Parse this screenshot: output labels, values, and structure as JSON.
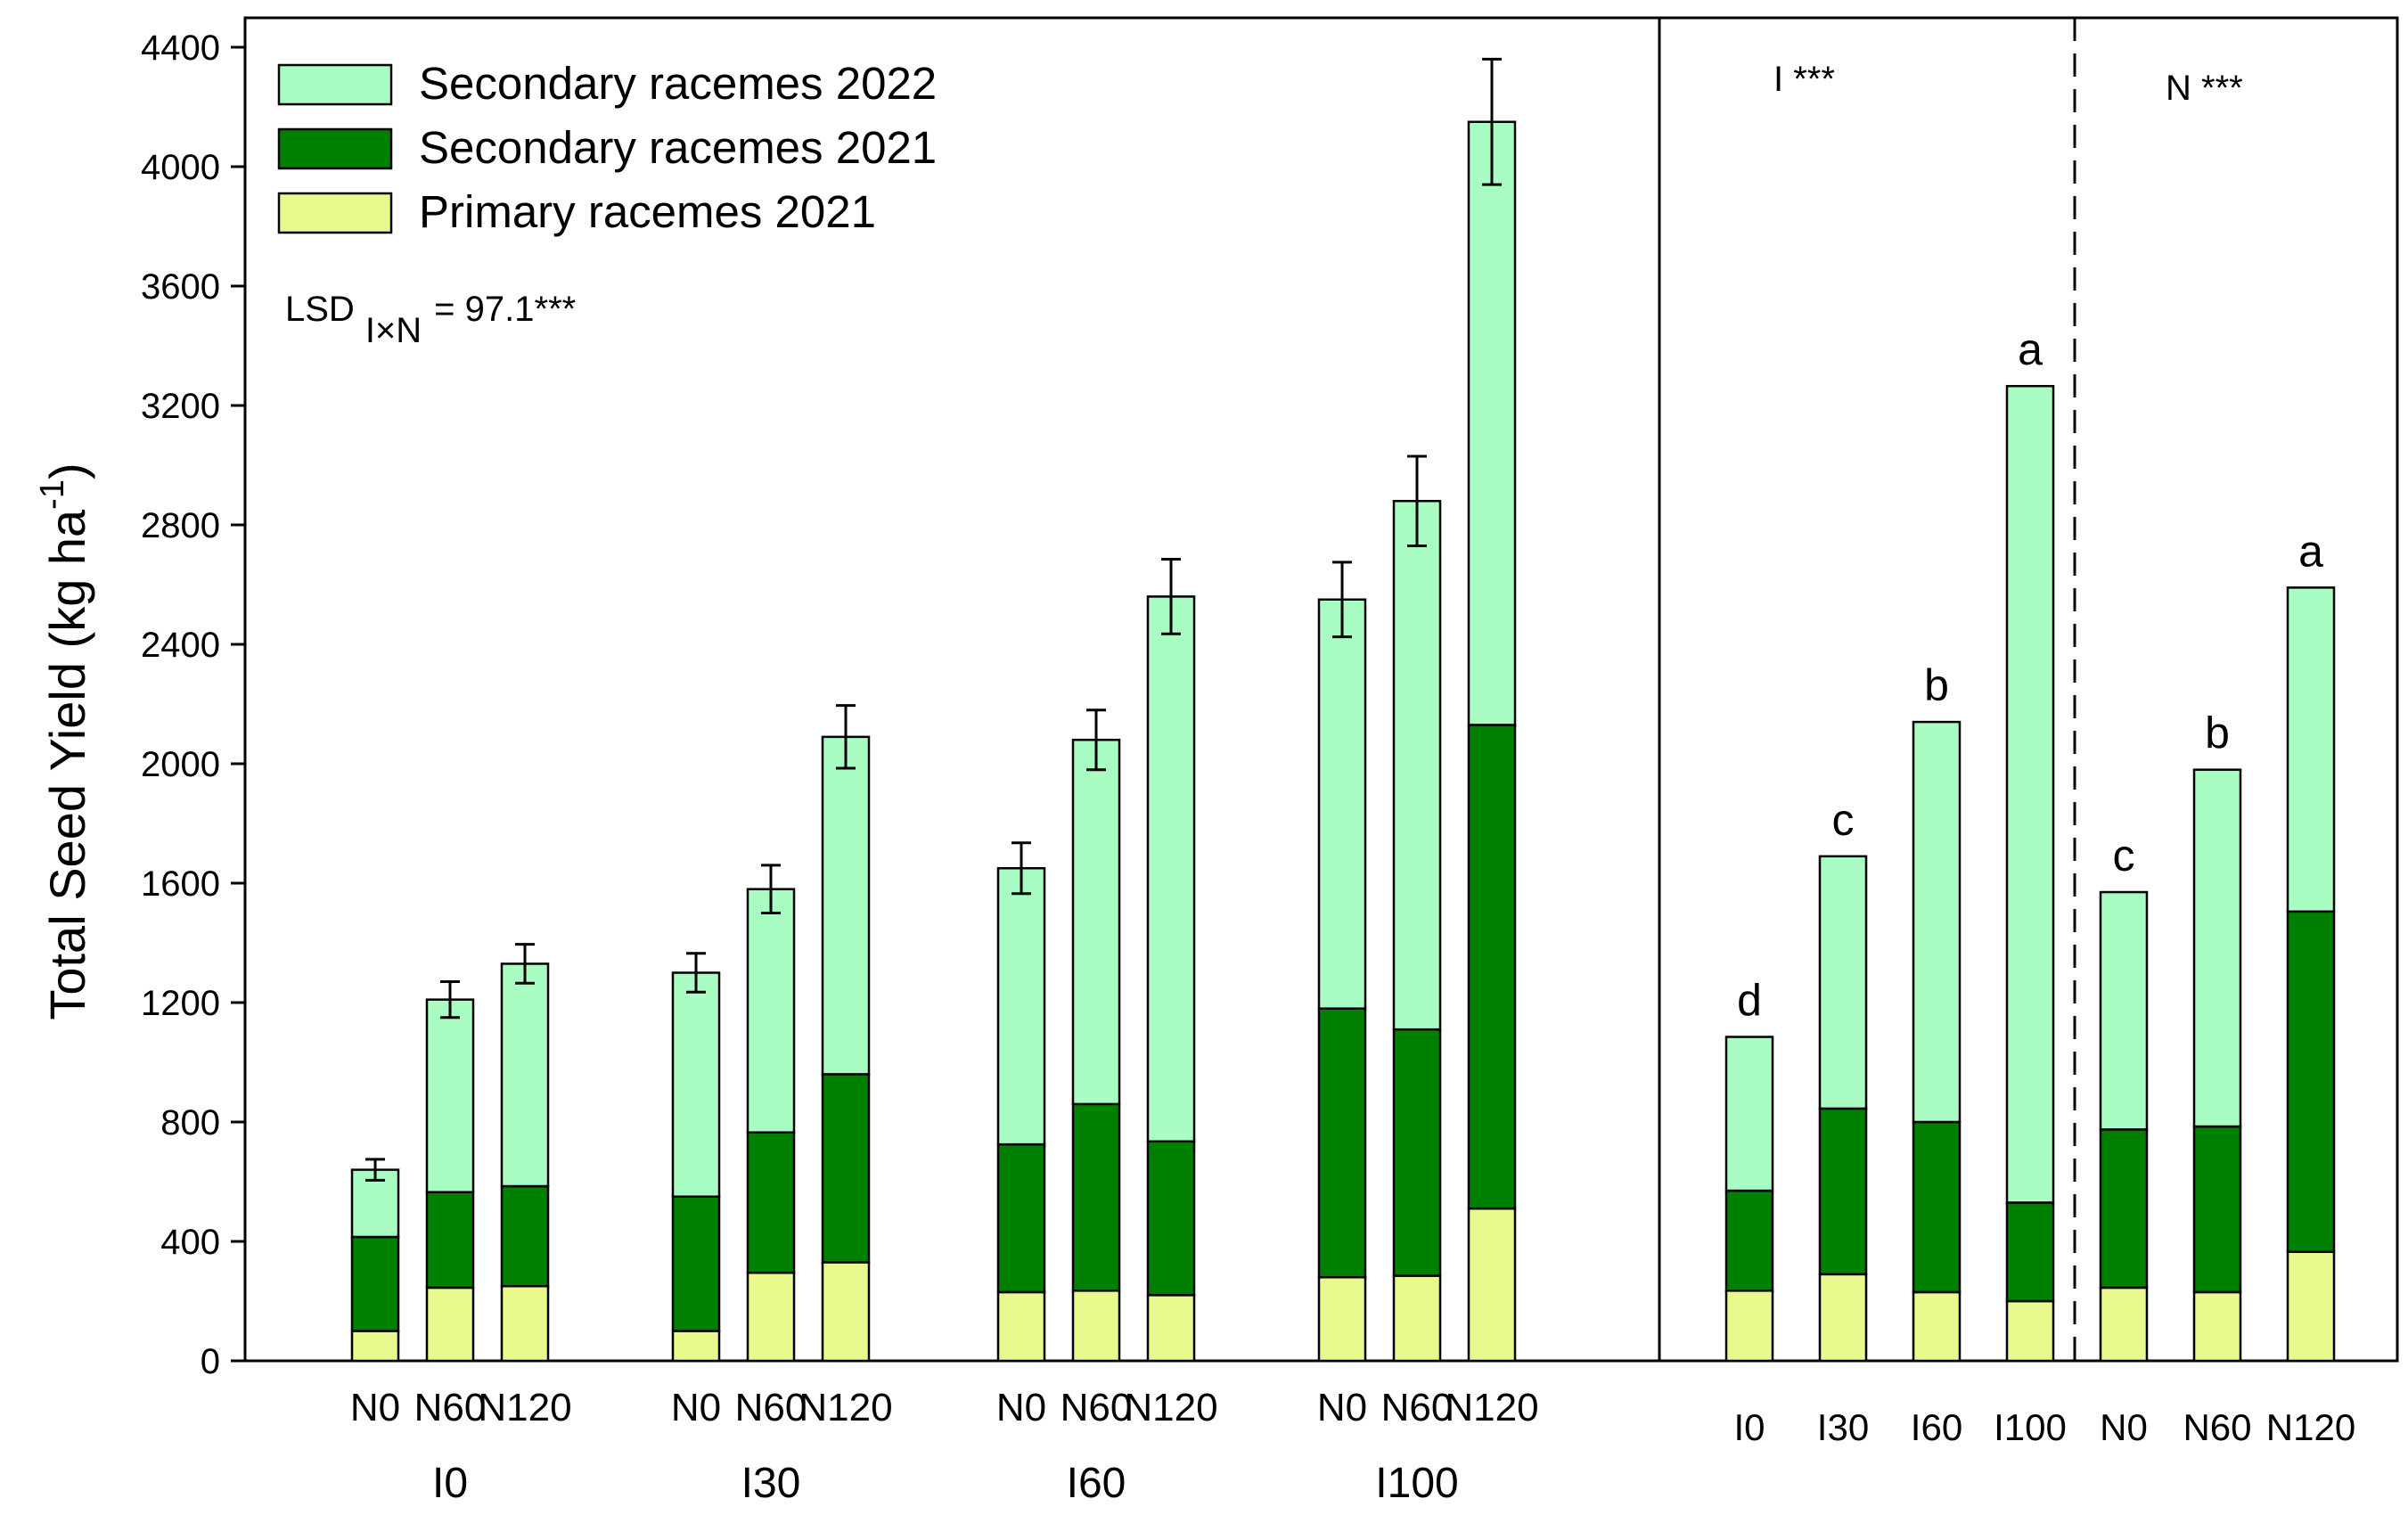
{
  "colors": {
    "primary_2021": "#eaf98d",
    "secondary_2021": "#008000",
    "secondary_2022": "#a9fdc2",
    "axis": "#000000"
  },
  "chart_data": [
    {
      "id": "interaction",
      "type": "stacked-bar",
      "ylabel": "Total Seed Yield (kg ha-1)",
      "ylabel_main": "Total Seed Yield (kg ha",
      "ylabel_sup": "-1",
      "ylabel_close": ")",
      "ylim": [
        0,
        4500
      ],
      "yticks": [
        0,
        400,
        800,
        1200,
        1600,
        2000,
        2400,
        2800,
        3200,
        3600,
        4000,
        4400
      ],
      "legend": {
        "position": "top-left",
        "entries": [
          {
            "key": "s2022",
            "label": "Secondary racemes 2022"
          },
          {
            "key": "s2021",
            "label": "Secondary racemes 2021"
          },
          {
            "key": "p2021",
            "label": "Primary racemes 2021"
          }
        ]
      },
      "annotation": {
        "lsd_main": "LSD",
        "lsd_sub": "I×N",
        "lsd_value": "= 97.1***"
      },
      "series_order": [
        "p2021",
        "s2021",
        "s2022"
      ],
      "groups": [
        {
          "label": "I0",
          "bars": [
            {
              "label": "N0",
              "p2021": 100,
              "s2021": 315,
              "s2022": 225,
              "total": 640,
              "err": 35
            },
            {
              "label": "N60",
              "p2021": 245,
              "s2021": 320,
              "s2022": 645,
              "total": 1210,
              "err": 60
            },
            {
              "label": "N120",
              "p2021": 250,
              "s2021": 335,
              "s2022": 745,
              "total": 1330,
              "err": 65
            }
          ]
        },
        {
          "label": "I30",
          "bars": [
            {
              "label": "N0",
              "p2021": 100,
              "s2021": 450,
              "s2022": 750,
              "total": 1300,
              "err": 65
            },
            {
              "label": "N60",
              "p2021": 295,
              "s2021": 470,
              "s2022": 815,
              "total": 1580,
              "err": 80
            },
            {
              "label": "N120",
              "p2021": 330,
              "s2021": 630,
              "s2022": 1130,
              "total": 2090,
              "err": 105
            }
          ]
        },
        {
          "label": "I60",
          "bars": [
            {
              "label": "N0",
              "p2021": 230,
              "s2021": 495,
              "s2022": 925,
              "total": 1650,
              "err": 85
            },
            {
              "label": "N60",
              "p2021": 235,
              "s2021": 625,
              "s2022": 1220,
              "total": 2080,
              "err": 100
            },
            {
              "label": "N120",
              "p2021": 220,
              "s2021": 515,
              "s2022": 1825,
              "total": 2560,
              "err": 125
            }
          ]
        },
        {
          "label": "I100",
          "bars": [
            {
              "label": "N0",
              "p2021": 280,
              "s2021": 900,
              "s2022": 1370,
              "total": 2550,
              "err": 125
            },
            {
              "label": "N60",
              "p2021": 285,
              "s2021": 825,
              "s2022": 1770,
              "total": 2880,
              "err": 150
            },
            {
              "label": "N120",
              "p2021": 510,
              "s2021": 1620,
              "s2022": 2020,
              "total": 4150,
              "err": 210
            }
          ]
        }
      ]
    },
    {
      "id": "main-effects",
      "type": "stacked-bar",
      "ylim": [
        0,
        4500
      ],
      "annotations": [
        "I ***",
        "N ***"
      ],
      "series_order": [
        "p2021",
        "s2021",
        "s2022"
      ],
      "panels": [
        {
          "factor": "I",
          "bars": [
            {
              "label": "I0",
              "p2021": 235,
              "s2021": 335,
              "s2022": 515,
              "total": 1085,
              "letter": "d"
            },
            {
              "label": "I30",
              "p2021": 290,
              "s2021": 555,
              "s2022": 845,
              "total": 1690,
              "letter": "c"
            },
            {
              "label": "I60",
              "p2021": 230,
              "s2021": 570,
              "s2022": 1340,
              "total": 2140,
              "letter": "b"
            },
            {
              "label": "I100",
              "p2021": 200,
              "s2021": 330,
              "s2022": 2735,
              "total": 3265,
              "letter": "a"
            }
          ]
        },
        {
          "factor": "N",
          "bars": [
            {
              "label": "N0",
              "p2021": 245,
              "s2021": 530,
              "s2022": 795,
              "total": 1570,
              "letter": "c"
            },
            {
              "label": "N60",
              "p2021": 230,
              "s2021": 555,
              "s2022": 1195,
              "total": 1980,
              "letter": "b"
            },
            {
              "label": "N120",
              "p2021": 365,
              "s2021": 1140,
              "s2022": 1085,
              "total": 2590,
              "letter": "a"
            }
          ]
        }
      ]
    }
  ]
}
